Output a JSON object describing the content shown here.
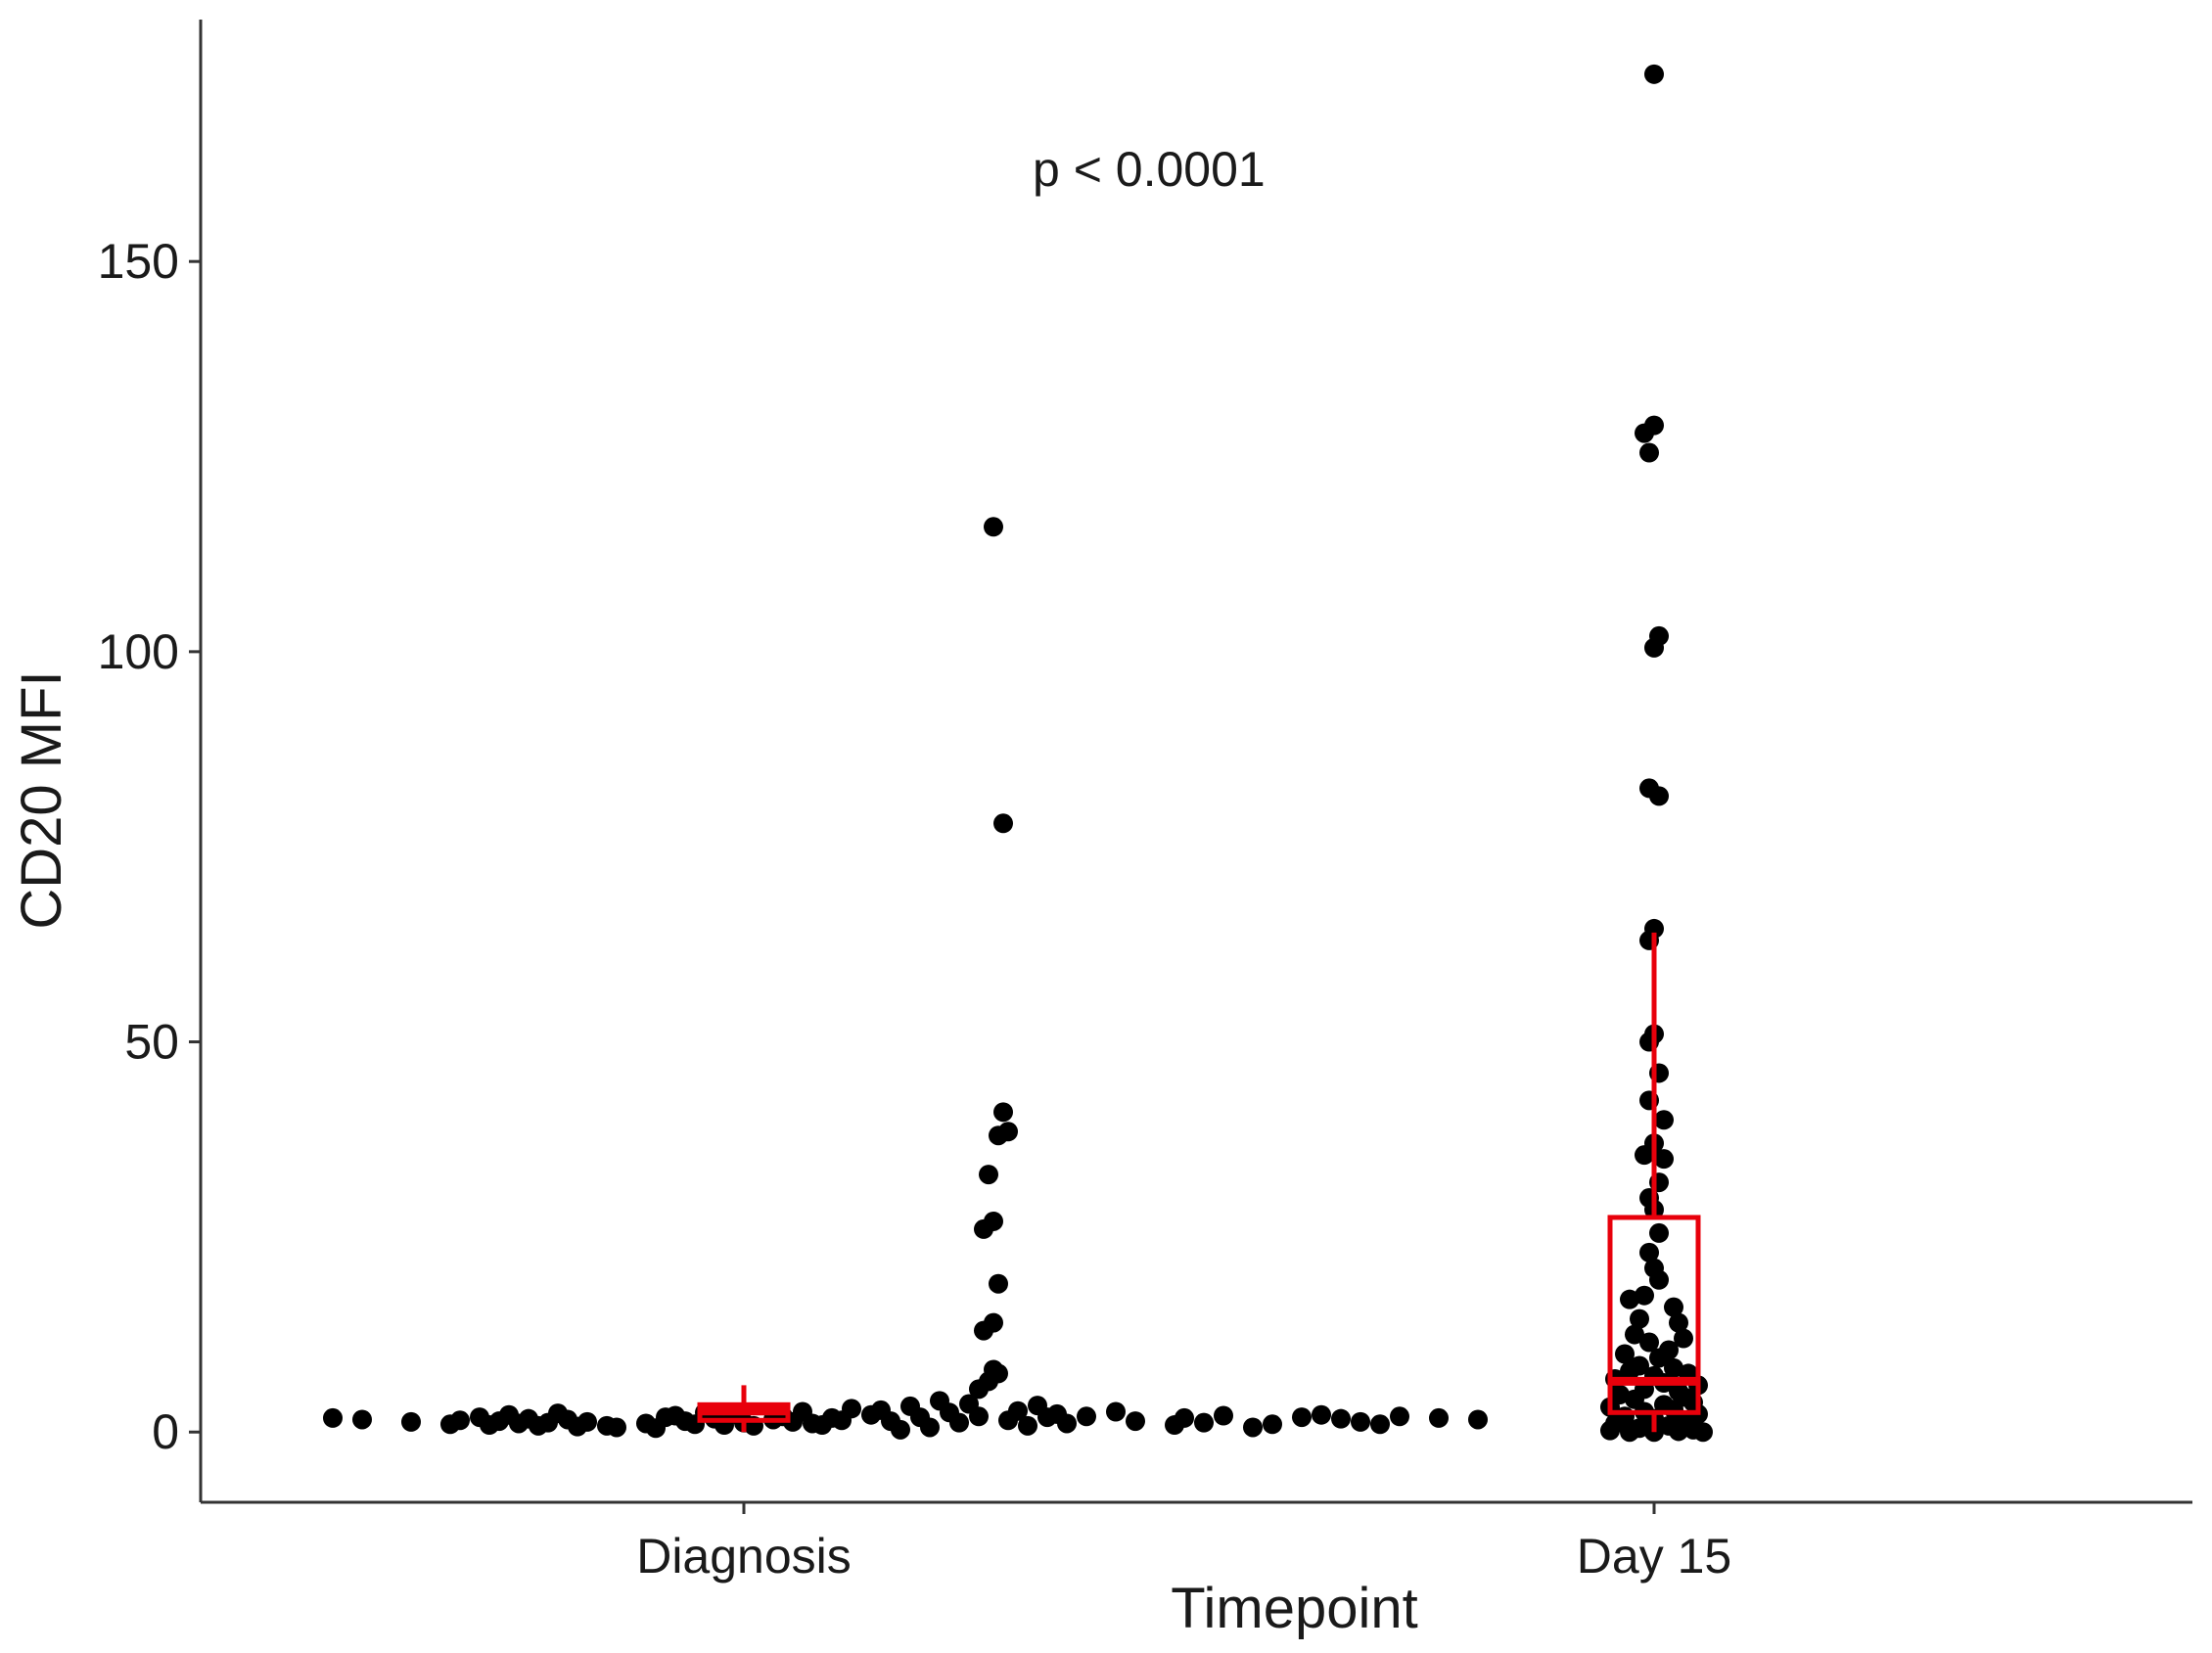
{
  "chart_data": {
    "type": "scatter",
    "xlabel": "Timepoint",
    "ylabel": "CD20 MFI",
    "categories": [
      "Diagnosis",
      "Day 15"
    ],
    "ylim": [
      -9,
      181
    ],
    "yticks": [
      0,
      50,
      100,
      150
    ],
    "grid": false,
    "annotation": "p < 0.0001",
    "colors": {
      "points": "#000000",
      "box": "#e8000b",
      "axis": "#333333"
    },
    "boxplots": [
      {
        "category": "Diagnosis",
        "q1": 1.5,
        "median": 2.7,
        "q3": 3.5,
        "whisker_low": 0.0,
        "whisker_high": 6.0
      },
      {
        "category": "Day 15",
        "q1": 2.5,
        "median": 6.5,
        "q3": 27.5,
        "whisker_low": 0.0,
        "whisker_high": 64.0
      }
    ],
    "series": [
      {
        "category": "Diagnosis",
        "points": [
          {
            "dx": -0.42,
            "y": 1.8
          },
          {
            "dx": -0.39,
            "y": 1.6
          },
          {
            "dx": -0.34,
            "y": 1.3
          },
          {
            "dx": -0.3,
            "y": 1.0
          },
          {
            "dx": -0.29,
            "y": 1.5
          },
          {
            "dx": -0.27,
            "y": 1.9
          },
          {
            "dx": -0.26,
            "y": 0.9
          },
          {
            "dx": -0.25,
            "y": 1.4
          },
          {
            "dx": -0.24,
            "y": 2.2
          },
          {
            "dx": -0.23,
            "y": 1.1
          },
          {
            "dx": -0.22,
            "y": 1.7
          },
          {
            "dx": -0.21,
            "y": 0.8
          },
          {
            "dx": -0.2,
            "y": 1.2
          },
          {
            "dx": -0.19,
            "y": 2.4
          },
          {
            "dx": -0.18,
            "y": 1.6
          },
          {
            "dx": -0.17,
            "y": 0.7
          },
          {
            "dx": -0.16,
            "y": 1.3
          },
          {
            "dx": -0.14,
            "y": 0.8
          },
          {
            "dx": -0.13,
            "y": 0.6
          },
          {
            "dx": -0.1,
            "y": 1.1
          },
          {
            "dx": -0.09,
            "y": 0.5
          },
          {
            "dx": -0.08,
            "y": 1.9
          },
          {
            "dx": -0.07,
            "y": 2.1
          },
          {
            "dx": -0.06,
            "y": 1.4
          },
          {
            "dx": -0.05,
            "y": 1.0
          },
          {
            "dx": -0.04,
            "y": 2.5
          },
          {
            "dx": -0.03,
            "y": 1.7
          },
          {
            "dx": -0.02,
            "y": 0.9
          },
          {
            "dx": -0.01,
            "y": 2.3
          },
          {
            "dx": 0.0,
            "y": 1.2
          },
          {
            "dx": 0.01,
            "y": 0.8
          },
          {
            "dx": 0.03,
            "y": 1.6
          },
          {
            "dx": 0.04,
            "y": 2.0
          },
          {
            "dx": 0.05,
            "y": 1.3
          },
          {
            "dx": 0.06,
            "y": 2.6
          },
          {
            "dx": 0.07,
            "y": 1.1
          },
          {
            "dx": 0.08,
            "y": 0.9
          },
          {
            "dx": 0.09,
            "y": 1.8
          },
          {
            "dx": 0.1,
            "y": 1.5
          },
          {
            "dx": 0.11,
            "y": 3.0
          },
          {
            "dx": 0.13,
            "y": 2.2
          },
          {
            "dx": 0.14,
            "y": 2.8
          },
          {
            "dx": 0.15,
            "y": 1.4
          },
          {
            "dx": 0.16,
            "y": 0.3
          },
          {
            "dx": 0.17,
            "y": 3.3
          },
          {
            "dx": 0.18,
            "y": 1.9
          },
          {
            "dx": 0.19,
            "y": 0.6
          },
          {
            "dx": 0.2,
            "y": 4.0
          },
          {
            "dx": 0.21,
            "y": 2.5
          },
          {
            "dx": 0.22,
            "y": 1.2
          },
          {
            "dx": 0.23,
            "y": 3.6
          },
          {
            "dx": 0.24,
            "y": 5.5
          },
          {
            "dx": 0.25,
            "y": 6.5
          },
          {
            "dx": 0.26,
            "y": 7.5
          },
          {
            "dx": 0.255,
            "y": 8.0
          },
          {
            "dx": 0.24,
            "y": 2.0
          },
          {
            "dx": 0.245,
            "y": 13.0
          },
          {
            "dx": 0.255,
            "y": 14.0
          },
          {
            "dx": 0.26,
            "y": 19.0
          },
          {
            "dx": 0.245,
            "y": 26.0
          },
          {
            "dx": 0.255,
            "y": 27.0
          },
          {
            "dx": 0.25,
            "y": 33.0
          },
          {
            "dx": 0.26,
            "y": 38.0
          },
          {
            "dx": 0.27,
            "y": 38.5
          },
          {
            "dx": 0.265,
            "y": 41.0
          },
          {
            "dx": 0.265,
            "y": 78.0
          },
          {
            "dx": 0.255,
            "y": 116.0
          },
          {
            "dx": 0.27,
            "y": 1.5
          },
          {
            "dx": 0.28,
            "y": 2.7
          },
          {
            "dx": 0.29,
            "y": 0.8
          },
          {
            "dx": 0.3,
            "y": 3.4
          },
          {
            "dx": 0.31,
            "y": 1.9
          },
          {
            "dx": 0.32,
            "y": 2.3
          },
          {
            "dx": 0.33,
            "y": 1.1
          },
          {
            "dx": 0.35,
            "y": 2.0
          },
          {
            "dx": 0.38,
            "y": 2.6
          },
          {
            "dx": 0.4,
            "y": 1.4
          },
          {
            "dx": 0.44,
            "y": 0.9
          },
          {
            "dx": 0.45,
            "y": 1.8
          },
          {
            "dx": 0.47,
            "y": 1.2
          },
          {
            "dx": 0.49,
            "y": 2.1
          },
          {
            "dx": 0.52,
            "y": 0.6
          },
          {
            "dx": 0.54,
            "y": 1.0
          },
          {
            "dx": 0.57,
            "y": 1.9
          },
          {
            "dx": 0.59,
            "y": 2.2
          },
          {
            "dx": 0.61,
            "y": 1.7
          },
          {
            "dx": 0.63,
            "y": 1.3
          },
          {
            "dx": 0.65,
            "y": 1.0
          },
          {
            "dx": 0.67,
            "y": 2.0
          },
          {
            "dx": 0.71,
            "y": 1.8
          },
          {
            "dx": 0.75,
            "y": 1.6
          }
        ]
      },
      {
        "category": "Day 15",
        "points": [
          {
            "dx": 0.0,
            "y": 174.0
          },
          {
            "dx": 0.0,
            "y": 129.0
          },
          {
            "dx": -0.01,
            "y": 128.0
          },
          {
            "dx": -0.005,
            "y": 125.5
          },
          {
            "dx": 0.005,
            "y": 102.0
          },
          {
            "dx": 0.0,
            "y": 100.5
          },
          {
            "dx": -0.005,
            "y": 82.5
          },
          {
            "dx": 0.005,
            "y": 81.5
          },
          {
            "dx": 0.0,
            "y": 64.5
          },
          {
            "dx": -0.005,
            "y": 63.0
          },
          {
            "dx": 0.0,
            "y": 51.0
          },
          {
            "dx": -0.005,
            "y": 50.0
          },
          {
            "dx": 0.005,
            "y": 46.0
          },
          {
            "dx": -0.005,
            "y": 42.5
          },
          {
            "dx": 0.01,
            "y": 40.0
          },
          {
            "dx": 0.0,
            "y": 37.0
          },
          {
            "dx": -0.01,
            "y": 35.5
          },
          {
            "dx": 0.01,
            "y": 35.0
          },
          {
            "dx": 0.005,
            "y": 32.0
          },
          {
            "dx": -0.005,
            "y": 30.0
          },
          {
            "dx": 0.0,
            "y": 28.5
          },
          {
            "dx": 0.005,
            "y": 25.5
          },
          {
            "dx": -0.005,
            "y": 23.0
          },
          {
            "dx": 0.0,
            "y": 21.0
          },
          {
            "dx": 0.005,
            "y": 19.5
          },
          {
            "dx": -0.01,
            "y": 17.5
          },
          {
            "dx": -0.025,
            "y": 17.0
          },
          {
            "dx": 0.02,
            "y": 16.0
          },
          {
            "dx": -0.015,
            "y": 14.5
          },
          {
            "dx": 0.025,
            "y": 14.0
          },
          {
            "dx": -0.02,
            "y": 12.5
          },
          {
            "dx": 0.03,
            "y": 12.0
          },
          {
            "dx": -0.005,
            "y": 11.5
          },
          {
            "dx": 0.015,
            "y": 10.5
          },
          {
            "dx": -0.03,
            "y": 10.0
          },
          {
            "dx": 0.005,
            "y": 9.5
          },
          {
            "dx": -0.015,
            "y": 8.5
          },
          {
            "dx": 0.02,
            "y": 8.2
          },
          {
            "dx": -0.025,
            "y": 7.8
          },
          {
            "dx": 0.035,
            "y": 7.5
          },
          {
            "dx": 0.0,
            "y": 7.2
          },
          {
            "dx": -0.04,
            "y": 6.8
          },
          {
            "dx": 0.01,
            "y": 6.3
          },
          {
            "dx": 0.045,
            "y": 6.0
          },
          {
            "dx": -0.01,
            "y": 5.5
          },
          {
            "dx": 0.025,
            "y": 5.2
          },
          {
            "dx": -0.035,
            "y": 4.8
          },
          {
            "dx": 0.03,
            "y": 4.5
          },
          {
            "dx": -0.02,
            "y": 4.2
          },
          {
            "dx": 0.04,
            "y": 3.8
          },
          {
            "dx": 0.01,
            "y": 3.5
          },
          {
            "dx": -0.045,
            "y": 3.2
          },
          {
            "dx": 0.02,
            "y": 2.9
          },
          {
            "dx": -0.01,
            "y": 2.6
          },
          {
            "dx": 0.045,
            "y": 2.3
          },
          {
            "dx": -0.03,
            "y": 2.0
          },
          {
            "dx": 0.0,
            "y": 1.7
          },
          {
            "dx": 0.03,
            "y": 1.4
          },
          {
            "dx": -0.04,
            "y": 1.1
          },
          {
            "dx": 0.015,
            "y": 0.8
          },
          {
            "dx": -0.015,
            "y": 0.5
          },
          {
            "dx": 0.04,
            "y": 0.3
          },
          {
            "dx": -0.045,
            "y": 0.2
          },
          {
            "dx": 0.025,
            "y": 0.1
          },
          {
            "dx": 0.0,
            "y": 0.0
          },
          {
            "dx": -0.025,
            "y": 0.0
          },
          {
            "dx": 0.05,
            "y": 0.0
          }
        ]
      }
    ]
  }
}
